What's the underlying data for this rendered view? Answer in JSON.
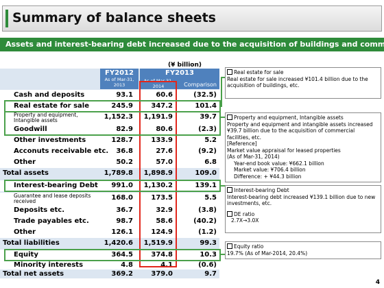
{
  "title": "Summary of balance sheets",
  "subtitle": "Assets and interest-bearing debt increased due to the acquisition of buildings and commercial facilities, etc.",
  "unit": "(¥ billion)",
  "columns": {
    "fy2012": "FY2012",
    "fy2012_date": "As of Mar-31, 2013",
    "fy2013": "FY2013",
    "fy2013_date": "As of Mar-31, 2014",
    "comparison": "Comparison"
  },
  "rows": [
    {
      "label": "Cash and deposits",
      "fy2012": "93.1",
      "fy2013": "60.6",
      "cmp": "(32.5)"
    },
    {
      "label": "Real estate for sale",
      "fy2012": "245.9",
      "fy2013": "347.2",
      "cmp": "101.4"
    },
    {
      "label": "Property and equipment, Intangible assets",
      "fy2012": "1,152.3",
      "fy2013": "1,191.9",
      "cmp": "39.7"
    },
    {
      "label": "Goodwill",
      "fy2012": "82.9",
      "fy2013": "80.6",
      "cmp": "(2.3)"
    },
    {
      "label": "Other investments",
      "fy2012": "128.7",
      "fy2013": "133.9",
      "cmp": "5.2"
    },
    {
      "label": "Acconuts receivable etc.",
      "fy2012": "36.8",
      "fy2013": "27.6",
      "cmp": "(9.2)"
    },
    {
      "label": "Other",
      "fy2012": "50.2",
      "fy2013": "57.0",
      "cmp": "6.8"
    },
    {
      "label": "Total assets",
      "fy2012": "1,789.8",
      "fy2013": "1,898.9",
      "cmp": "109.0"
    },
    {
      "label": "Interest-bearing Debt",
      "fy2012": "991.0",
      "fy2013": "1,130.2",
      "cmp": "139.1"
    },
    {
      "label": "Guarantee and lease deposits received",
      "fy2012": "168.0",
      "fy2013": "173.5",
      "cmp": "5.5"
    },
    {
      "label": "Deposits etc.",
      "fy2012": "36.7",
      "fy2013": "32.9",
      "cmp": "(3.8)"
    },
    {
      "label": "Trade payables etc.",
      "fy2012": "98.7",
      "fy2013": "58.6",
      "cmp": "(40.2)"
    },
    {
      "label": "Other",
      "fy2012": "126.1",
      "fy2013": "124.9",
      "cmp": "(1.2)"
    },
    {
      "label": "Total liabilities",
      "fy2012": "1,420.6",
      "fy2013": "1,519.9",
      "cmp": "99.3"
    },
    {
      "label": "Equity",
      "fy2012": "364.5",
      "fy2013": "374.8",
      "cmp": "10.3"
    },
    {
      "label": "Minority interests",
      "fy2012": "4.8",
      "fy2013": "4.1",
      "cmp": "(0.6)"
    },
    {
      "label": "Total net assets",
      "fy2012": "369.2",
      "fy2013": "379.0",
      "cmp": "9.7"
    }
  ],
  "notes": {
    "real_estate": {
      "title": "Real estate for sale",
      "body": "Real estate for sale increased ¥101.4 billion due to the acquisition of buildings, etc."
    },
    "property": {
      "title": "Property and equipment, Intangible assets",
      "body": "Property and equipment and intangible assets increased ¥39.7 billion due to the acquisition of commercial facilities, etc.",
      "reference": "[Reference]",
      "market": "Market value appraisal for leased properties",
      "as_of": "(As of Mar-31, 2014)",
      "book": "Year-end book value: ¥662.1 billion",
      "mv": "Market value: ¥706.4 billion",
      "diff": "Difference: + ¥44.3 billion"
    },
    "debt": {
      "title": "Interest-bearing Debt",
      "body": "Interest-bearing debt increased ¥139.1 billion due to new investments, etc.",
      "de_title": "DE ratio",
      "de_body": "2.7X→3.0X"
    },
    "equity": {
      "title": "Equity ratio",
      "body": "19.7% (As of Mar-2014, 20.4%)"
    }
  },
  "page_number": "4"
}
